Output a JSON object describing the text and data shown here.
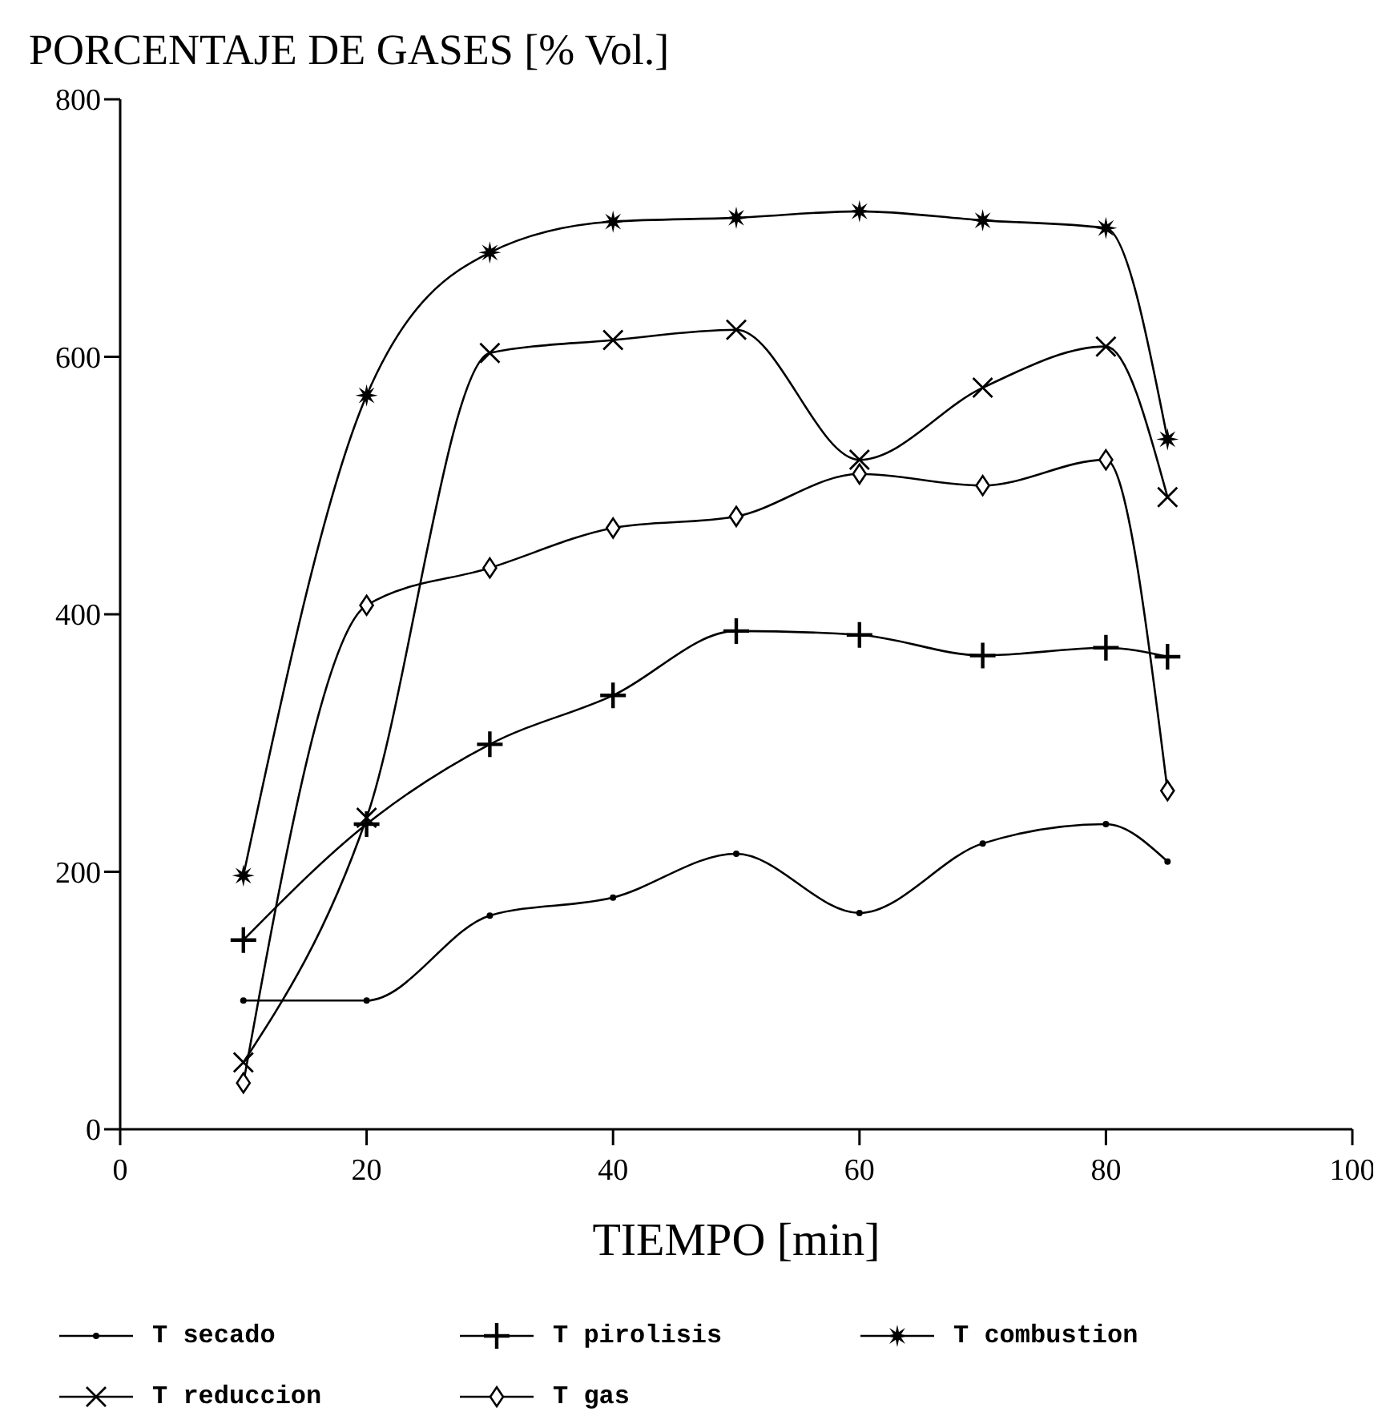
{
  "chart_data": {
    "type": "line",
    "title": "PORCENTAJE DE GASES [% Vol.]",
    "xlabel": "TIEMPO [min]",
    "x": [
      10,
      20,
      30,
      40,
      50,
      60,
      70,
      80,
      85
    ],
    "xlim": [
      0,
      100
    ],
    "xticks": [
      0,
      20,
      40,
      60,
      80,
      100
    ],
    "ylim": [
      0,
      800
    ],
    "yticks": [
      0,
      200,
      400,
      600,
      800
    ],
    "grid": false,
    "legend": "bottom",
    "line_style": "solid",
    "series": [
      {
        "name": "T secado",
        "color": "#000000",
        "marker": "circle",
        "values": [
          100,
          100,
          166,
          180,
          214,
          168,
          222,
          237,
          208
        ]
      },
      {
        "name": "T pirolisis",
        "color": "#000000",
        "marker": "plus",
        "values": [
          147,
          237,
          299,
          337,
          387,
          384,
          368,
          374,
          367
        ]
      },
      {
        "name": "T combustion",
        "color": "#000000",
        "marker": "star",
        "values": [
          197,
          570,
          681,
          705,
          708,
          713,
          706,
          700,
          536
        ]
      },
      {
        "name": "T reduccion",
        "color": "#000000",
        "marker": "cross",
        "values": [
          52,
          242,
          603,
          613,
          621,
          520,
          576,
          608,
          491
        ]
      },
      {
        "name": "T gas",
        "color": "#000000",
        "marker": "diamond",
        "values": [
          36,
          407,
          436,
          467,
          476,
          509,
          500,
          520,
          263
        ]
      }
    ]
  }
}
